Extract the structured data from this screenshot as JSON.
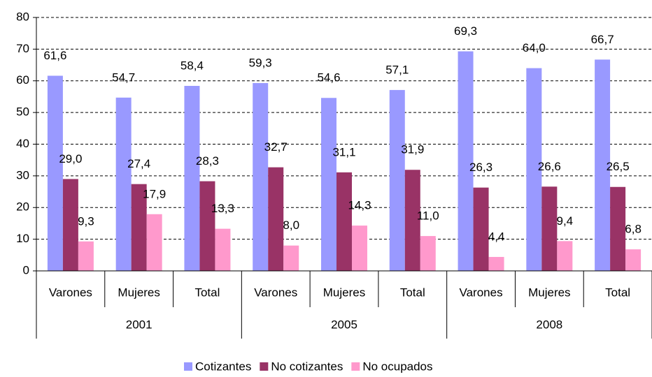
{
  "chart_data": {
    "type": "bar",
    "groups": [
      {
        "name": "2001",
        "categories": [
          "Varones",
          "Mujeres",
          "Total"
        ]
      },
      {
        "name": "2005",
        "categories": [
          "Varones",
          "Mujeres",
          "Total"
        ]
      },
      {
        "name": "2008",
        "categories": [
          "Varones",
          "Mujeres",
          "Total"
        ]
      }
    ],
    "series": [
      {
        "name": "Cotizantes",
        "color": "#9999ff",
        "values": [
          61.6,
          54.7,
          58.4,
          59.3,
          54.6,
          57.1,
          69.3,
          64.0,
          66.7
        ],
        "value_labels": [
          "61,6",
          "54,7",
          "58,4",
          "59,3",
          "54,6",
          "57,1",
          "69,3",
          "64,0",
          "66,7"
        ]
      },
      {
        "name": "No cotizantes",
        "color": "#993366",
        "values": [
          29.0,
          27.4,
          28.3,
          32.7,
          31.1,
          31.9,
          26.3,
          26.6,
          26.5
        ],
        "value_labels": [
          "29,0",
          "27,4",
          "28,3",
          "32,7",
          "31,1",
          "31,9",
          "26,3",
          "26,6",
          "26,5"
        ]
      },
      {
        "name": "No ocupados",
        "color": "#ff99cc",
        "values": [
          9.3,
          17.9,
          13.3,
          8.0,
          14.3,
          11.0,
          4.4,
          9.4,
          6.8
        ],
        "value_labels": [
          "9,3",
          "17,9",
          "13,3",
          "8,0",
          "14,3",
          "11,0",
          "4,4",
          "9,4",
          "6,8"
        ]
      }
    ],
    "ylim": [
      0,
      80
    ],
    "yticks": [
      0,
      10,
      20,
      30,
      40,
      50,
      60,
      70,
      80
    ],
    "grid": true,
    "legend": "bottom"
  }
}
